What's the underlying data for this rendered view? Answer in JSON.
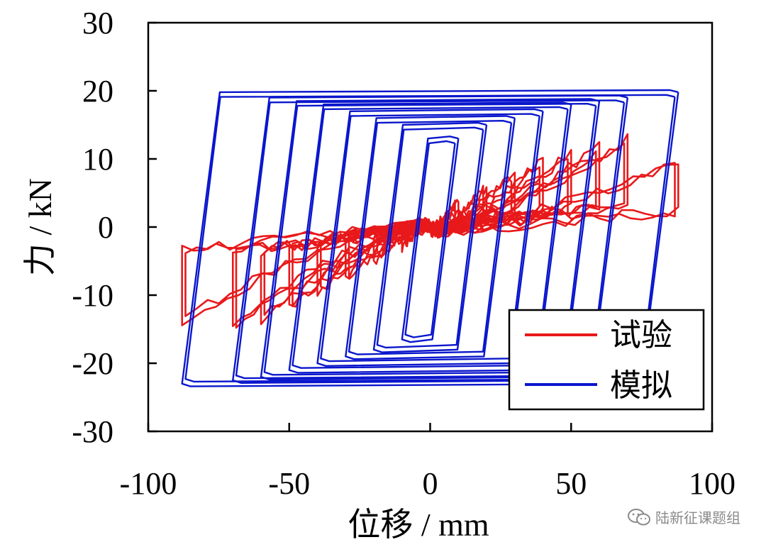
{
  "chart_data": {
    "type": "line",
    "xlabel": "位移 / mm",
    "ylabel": "力 / kN",
    "xlim": [
      -100,
      100
    ],
    "ylim": [
      -30,
      30
    ],
    "xticks": [
      -100,
      -50,
      0,
      50,
      100
    ],
    "yticks": [
      -30,
      -20,
      -10,
      0,
      10,
      20,
      30
    ],
    "legend_position": "bottom-right",
    "grid": false,
    "series": [
      {
        "name": "试验",
        "color": "#e8191b",
        "loops": [
          {
            "amplitude": 10,
            "fmax": 4,
            "fmin": -3
          },
          {
            "amplitude": 20,
            "fmax": 6,
            "fmin": -5
          },
          {
            "amplitude": 30,
            "fmax": 8,
            "fmin": -8
          },
          {
            "amplitude": 40,
            "fmax": 10,
            "fmin": -10
          },
          {
            "amplitude": 50,
            "fmax": 11,
            "fmin": -12
          },
          {
            "amplitude": 60,
            "fmax": 12,
            "fmin": -14
          },
          {
            "amplitude": 70,
            "fmax": 13,
            "fmin": -15
          },
          {
            "amplitude": 88,
            "fmax": 10,
            "fmin": -14
          }
        ]
      },
      {
        "name": "模拟",
        "color": "#0a16cc",
        "loops": [
          {
            "amplitude": 10,
            "fmax": 13,
            "fmin": -16.5
          },
          {
            "amplitude": 20,
            "fmax": 15,
            "fmin": -18
          },
          {
            "amplitude": 30,
            "fmax": 16,
            "fmin": -19
          },
          {
            "amplitude": 40,
            "fmax": 17,
            "fmin": -20
          },
          {
            "amplitude": 50,
            "fmax": 18,
            "fmin": -21
          },
          {
            "amplitude": 60,
            "fmax": 18.5,
            "fmin": -22
          },
          {
            "amplitude": 70,
            "fmax": 19,
            "fmin": -22.5
          },
          {
            "amplitude": 88,
            "fmax": 19.8,
            "fmin": -23
          }
        ]
      }
    ]
  },
  "watermark": {
    "text": "陆新征课题组",
    "icon": "wechat-icon"
  }
}
